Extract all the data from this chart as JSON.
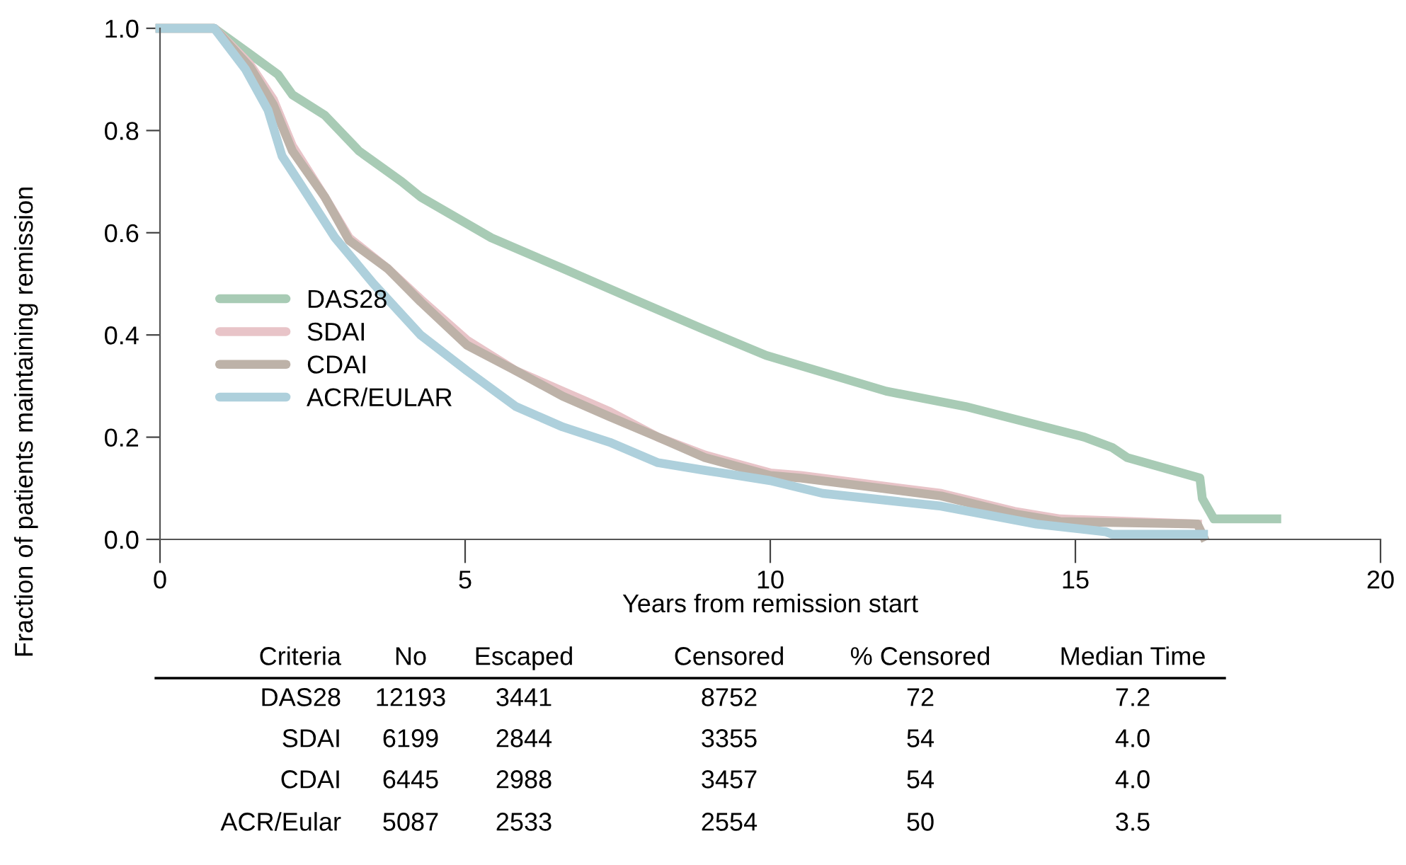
{
  "chart_data": {
    "type": "line",
    "xlabel": "Years from remission start",
    "ylabel": "Fraction of patients maintaining remission",
    "xlim": [
      0,
      20
    ],
    "ylim": [
      0,
      1.0
    ],
    "xticks": [
      0,
      5,
      10,
      15,
      20
    ],
    "yticks": [
      {
        "value": 0,
        "label": "0.0"
      },
      {
        "value": 0.2,
        "label": "0.2"
      },
      {
        "value": 0.4,
        "label": "0.4"
      },
      {
        "value": 0.6,
        "label": "0.6"
      },
      {
        "value": 0.8,
        "label": "0.8"
      },
      {
        "value": 1.0,
        "label": "1.0"
      }
    ],
    "grid": false,
    "legend": "left",
    "line_style": "solid",
    "marker": "none",
    "series": [
      {
        "name": "DAS28",
        "color": "#a8cbb5",
        "x": [
          0,
          0.89,
          1.47,
          1.93,
          2.17,
          2.7,
          3.26,
          3.96,
          4.27,
          5.43,
          6.6,
          7.76,
          8.93,
          9.93,
          11.9,
          13.2,
          15.15,
          15.6,
          15.85,
          17.04,
          17.08,
          17.27,
          18.3
        ],
        "values": [
          1.0,
          1.0,
          0.95,
          0.91,
          0.87,
          0.83,
          0.76,
          0.7,
          0.67,
          0.59,
          0.53,
          0.47,
          0.41,
          0.36,
          0.29,
          0.26,
          0.2,
          0.18,
          0.16,
          0.12,
          0.08,
          0.04,
          0.04
        ]
      },
      {
        "name": "SDAI",
        "color": "#e8c4c8",
        "x": [
          0,
          0.89,
          1.47,
          1.86,
          2.17,
          2.7,
          3.1,
          3.73,
          4.27,
          5.03,
          5.83,
          6.6,
          7.37,
          8.16,
          8.93,
          10.0,
          10.5,
          12.8,
          14.0,
          14.75,
          17.0
        ],
        "values": [
          1.0,
          1.0,
          0.93,
          0.86,
          0.77,
          0.67,
          0.59,
          0.53,
          0.47,
          0.39,
          0.33,
          0.29,
          0.25,
          0.2,
          0.165,
          0.13,
          0.125,
          0.09,
          0.055,
          0.04,
          0.03
        ]
      },
      {
        "name": "CDAI",
        "color": "#bdb2a8",
        "x": [
          0,
          0.89,
          1.47,
          1.86,
          2.17,
          2.7,
          3.1,
          3.73,
          4.27,
          5.03,
          5.83,
          6.6,
          7.37,
          8.16,
          8.93,
          10.0,
          10.5,
          12.8,
          14.0,
          14.75,
          17.0,
          17.1
        ],
        "values": [
          1.0,
          1.0,
          0.925,
          0.85,
          0.76,
          0.67,
          0.585,
          0.53,
          0.465,
          0.38,
          0.33,
          0.28,
          0.24,
          0.2,
          0.16,
          0.125,
          0.12,
          0.085,
          0.05,
          0.035,
          0.03,
          0.005
        ]
      },
      {
        "name": "ACR/EULAR",
        "color": "#aed0dc",
        "x": [
          0,
          0.89,
          1.4,
          1.77,
          2.0,
          2.33,
          2.87,
          3.5,
          4.27,
          5.03,
          5.83,
          6.6,
          7.37,
          8.16,
          8.93,
          10.0,
          10.86,
          12.8,
          14.36,
          15.5,
          15.6,
          17.1
        ],
        "values": [
          1.0,
          1.0,
          0.92,
          0.84,
          0.75,
          0.69,
          0.59,
          0.5,
          0.4,
          0.33,
          0.26,
          0.22,
          0.19,
          0.15,
          0.135,
          0.115,
          0.09,
          0.065,
          0.03,
          0.015,
          0.01,
          0.01
        ]
      }
    ],
    "annotations": [
      "Criteria",
      "No",
      "Escaped",
      "Censored",
      "% Censored",
      "Median Time",
      "DAS28",
      "12193",
      "3441",
      "8752",
      "72",
      "7.2",
      "SDAI",
      "6199",
      "2844",
      "3355",
      "54",
      "4.0",
      "CDAI",
      "6445",
      "2988",
      "3457",
      "54",
      "4.0",
      "ACR/Eular",
      "5087",
      "2533",
      "2554",
      "50",
      "3.5"
    ]
  }
}
